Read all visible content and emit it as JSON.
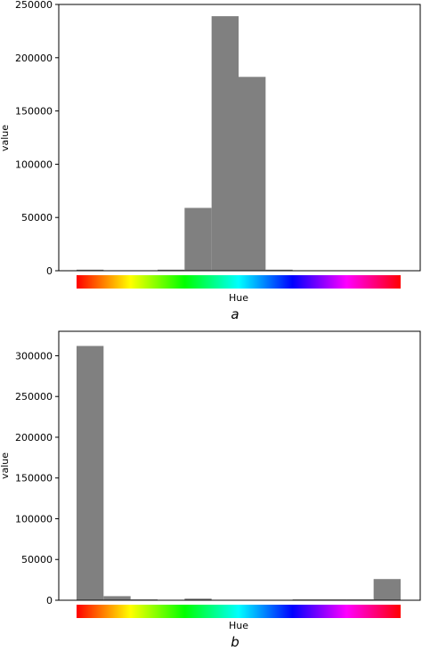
{
  "chart_data": [
    {
      "type": "bar",
      "caption": "a",
      "xlabel": "Hue",
      "ylabel": "value",
      "ylim": [
        0,
        250000
      ],
      "yticks": [
        "0",
        "50000",
        "100000",
        "150000",
        "200000",
        "250000"
      ],
      "bar_color": "#808080",
      "bins": 12,
      "values": [
        1000,
        0,
        0,
        1000,
        59000,
        239000,
        182000,
        1000,
        0,
        0,
        0,
        0
      ],
      "colorbar": "hue-spectrum"
    },
    {
      "type": "bar",
      "caption": "b",
      "xlabel": "Hue",
      "ylabel": "value",
      "ylim": [
        0,
        330000
      ],
      "yticks": [
        "0",
        "50000",
        "100000",
        "150000",
        "200000",
        "250000",
        "300000"
      ],
      "bar_color": "#808080",
      "bins": 12,
      "values": [
        312000,
        5000,
        1000,
        0,
        2000,
        0,
        0,
        0,
        1000,
        1000,
        1000,
        26000
      ],
      "colorbar": "hue-spectrum"
    }
  ]
}
